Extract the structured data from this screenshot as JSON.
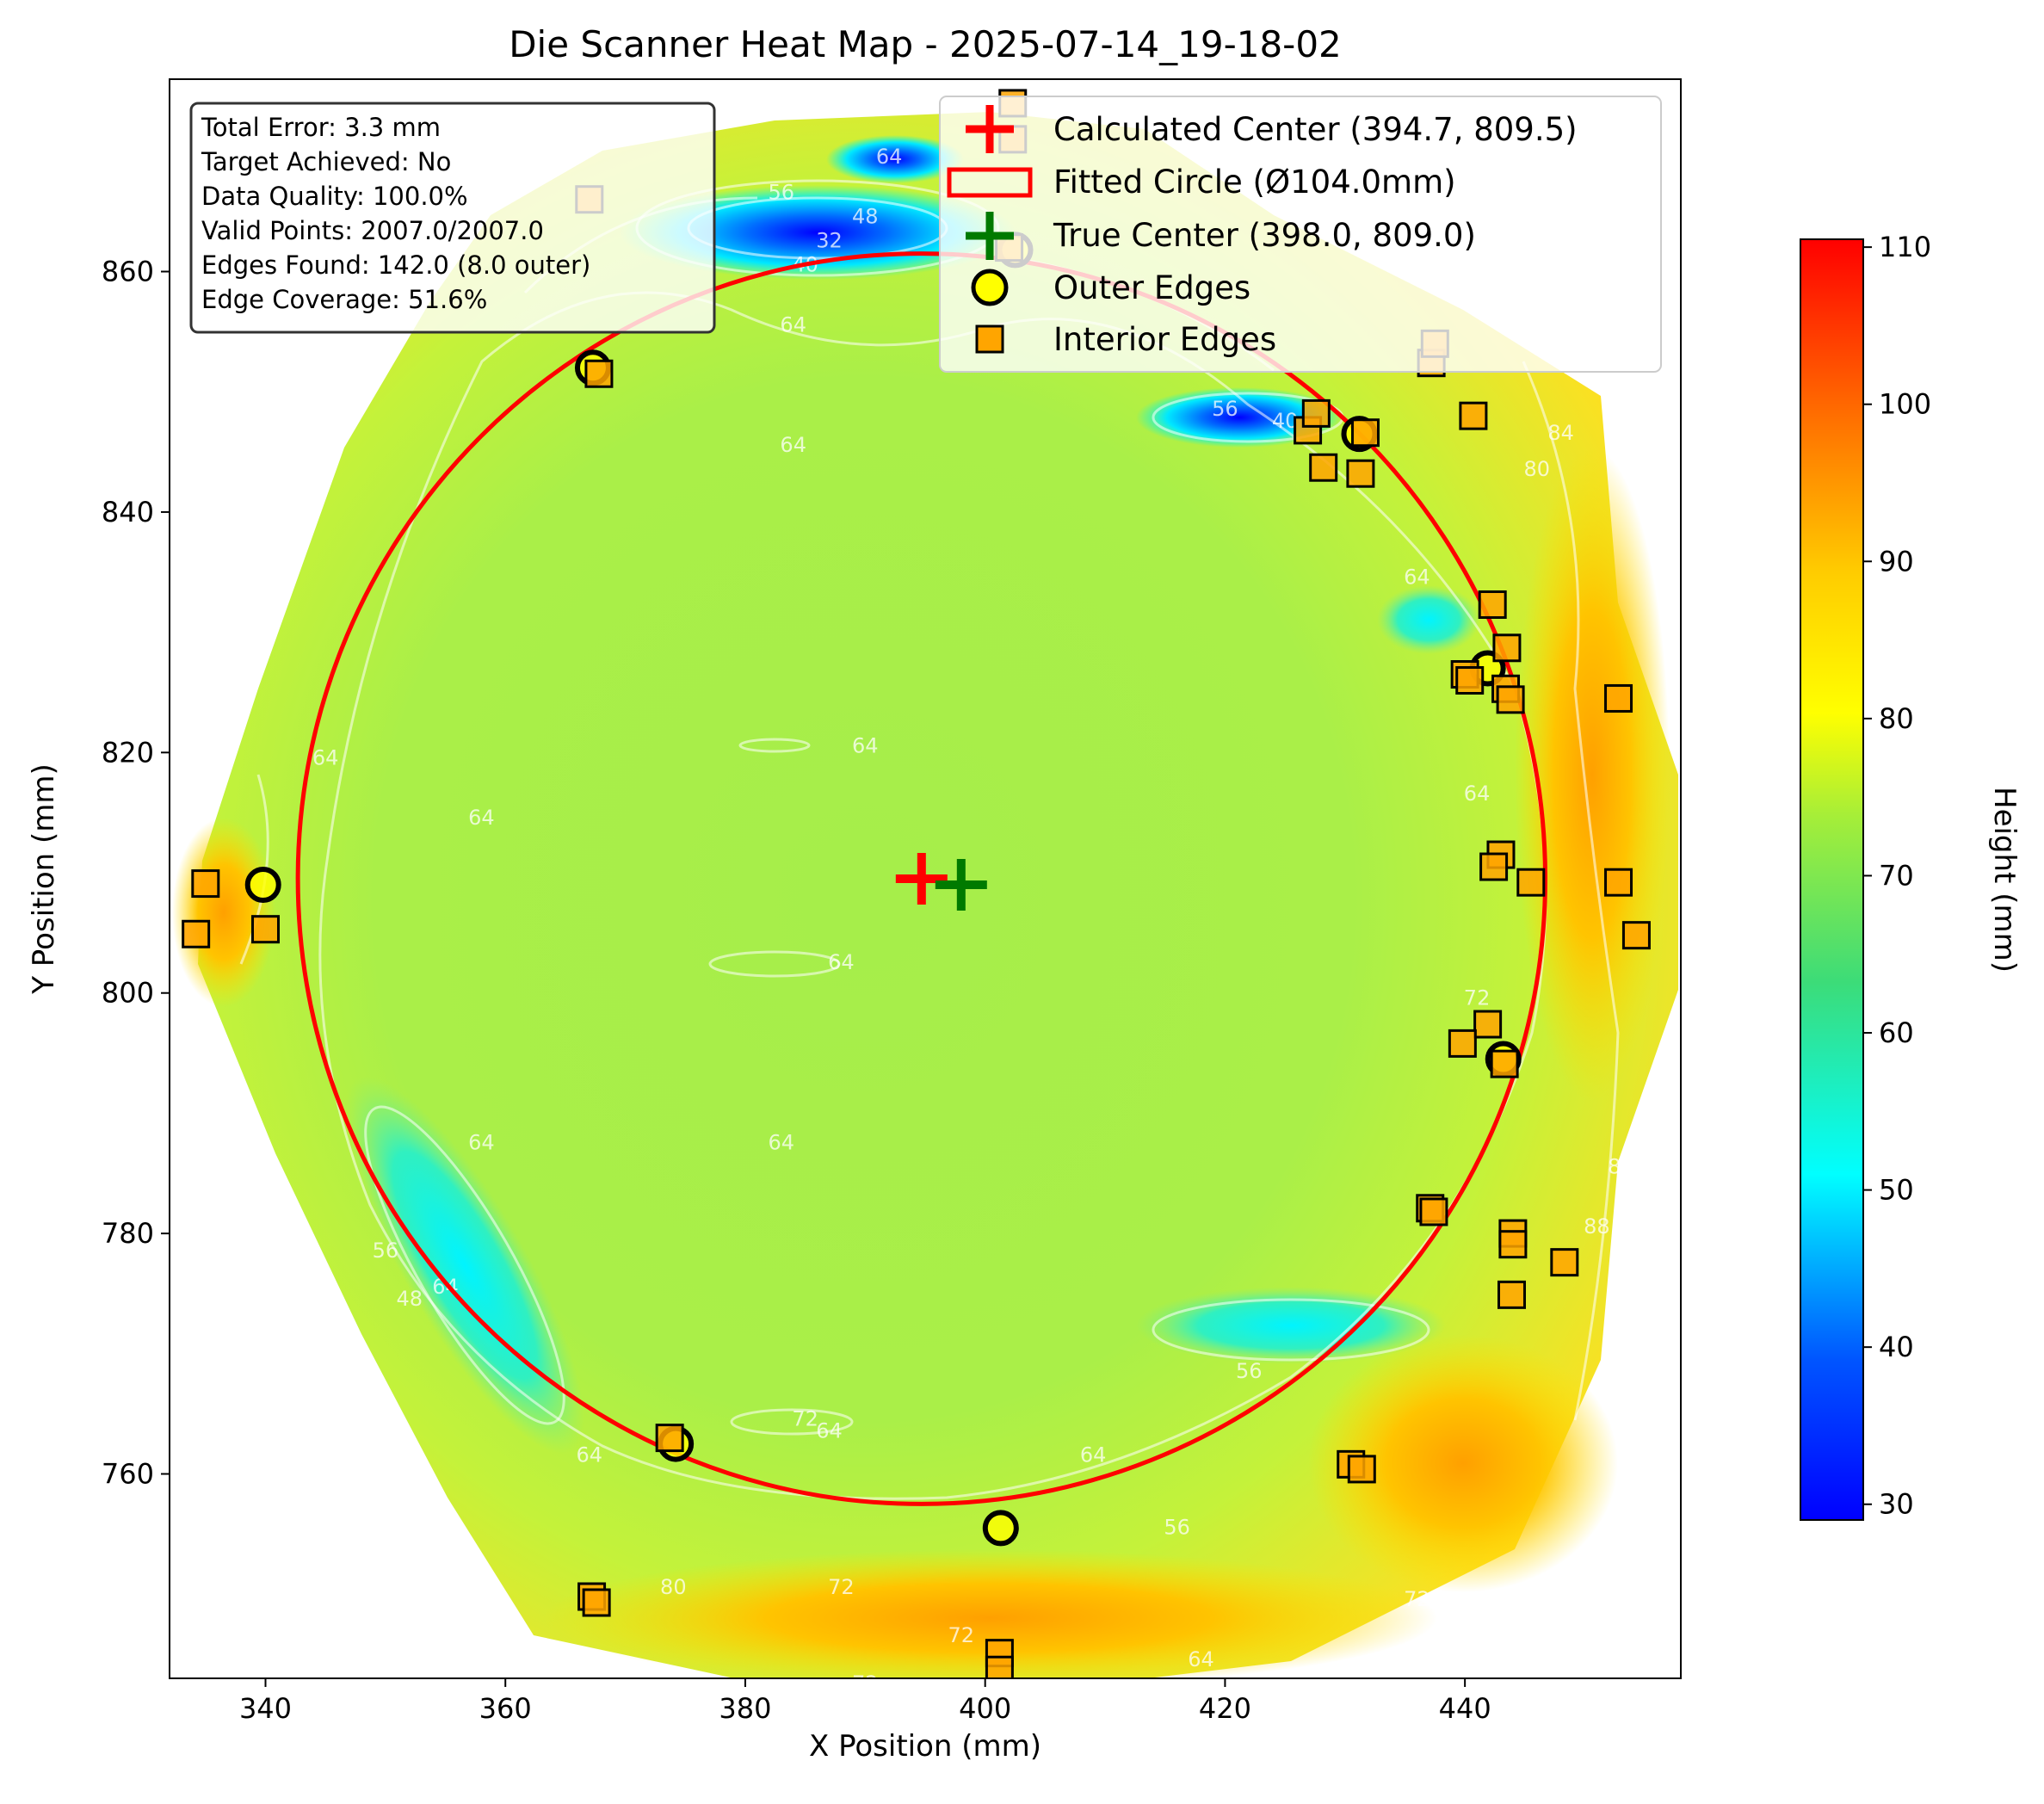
{
  "chart_data": {
    "type": "heatmap",
    "title": "Die Scanner Heat Map - 2025-07-14_19-18-02",
    "xlabel": "X Position (mm)",
    "ylabel": "Y Position (mm)",
    "xlim": [
      332,
      458
    ],
    "ylim": [
      743,
      876
    ],
    "xticks": [
      340,
      360,
      380,
      400,
      420,
      440
    ],
    "yticks": [
      760,
      780,
      800,
      820,
      840,
      860
    ],
    "grid": false,
    "colormap": "jet-like (blue-cyan-green-yellow-red)",
    "colorbar": {
      "label": "Height (mm)",
      "range": [
        29,
        110.5
      ],
      "ticks": [
        30,
        40,
        50,
        60,
        70,
        80,
        90,
        100,
        110
      ]
    },
    "info_box": {
      "lines": [
        "Total Error: 3.3 mm",
        "Target Achieved: No",
        "Data Quality: 100.0%",
        "Valid Points: 2007.0/2007.0",
        "Edges Found: 142.0 (8.0 outer)",
        "Edge Coverage: 51.6%"
      ]
    },
    "legend": {
      "placement": "top-right",
      "entries": [
        "Calculated Center (394.7, 809.5)",
        "Fitted Circle (Ø104.0mm)",
        "True Center (398.0, 809.0)",
        "Outer Edges",
        "Interior Edges"
      ]
    },
    "calculated_center": [
      394.7,
      809.5
    ],
    "true_center": [
      398.0,
      809.0
    ],
    "fitted_circle": {
      "center": [
        394.7,
        809.5
      ],
      "diameter": 104.0
    },
    "outer_edges": [
      [
        367.3,
        852
      ],
      [
        431.2,
        846.5
      ],
      [
        441.9,
        827
      ],
      [
        339.8,
        809
      ],
      [
        443.2,
        794.5
      ],
      [
        374.2,
        762.5
      ],
      [
        401.3,
        755.5
      ],
      [
        402.5,
        861.8
      ]
    ],
    "interior_edges": [
      [
        367.0,
        866
      ],
      [
        402.3,
        874
      ],
      [
        402.3,
        871
      ],
      [
        402.0,
        862
      ],
      [
        367.8,
        851.5
      ],
      [
        426.9,
        846.8
      ],
      [
        427.6,
        848.2
      ],
      [
        428.2,
        843.7
      ],
      [
        431.3,
        843.2
      ],
      [
        431.7,
        846.6
      ],
      [
        437.2,
        852.4
      ],
      [
        437.5,
        854
      ],
      [
        440.7,
        848
      ],
      [
        442.3,
        832.3
      ],
      [
        443.5,
        828.7
      ],
      [
        440.0,
        826.5
      ],
      [
        440.4,
        826.0
      ],
      [
        443.4,
        825.3
      ],
      [
        443.8,
        824.4
      ],
      [
        452.8,
        824.5
      ],
      [
        443.0,
        811.5
      ],
      [
        442.4,
        810.5
      ],
      [
        445.5,
        809.2
      ],
      [
        452.8,
        809.2
      ],
      [
        454.3,
        804.8
      ],
      [
        335.0,
        809.1
      ],
      [
        334.2,
        804.9
      ],
      [
        340.0,
        805.3
      ],
      [
        441.9,
        797.4
      ],
      [
        439.8,
        795.8
      ],
      [
        443.3,
        794.1
      ],
      [
        437.1,
        782.1
      ],
      [
        437.4,
        781.8
      ],
      [
        444.0,
        780.0
      ],
      [
        444.0,
        779.1
      ],
      [
        448.3,
        777.6
      ],
      [
        443.9,
        774.9
      ],
      [
        373.7,
        763.0
      ],
      [
        430.5,
        760.8
      ],
      [
        431.4,
        760.4
      ],
      [
        367.2,
        749.8
      ],
      [
        367.6,
        749.3
      ],
      [
        401.2,
        745.1
      ],
      [
        401.2,
        743.7
      ]
    ],
    "contour_labels": [
      {
        "text": "64",
        "at": [
          392,
          869
        ]
      },
      {
        "text": "48",
        "at": [
          390,
          864
        ]
      },
      {
        "text": "32",
        "at": [
          387,
          862
        ]
      },
      {
        "text": "40",
        "at": [
          385,
          860
        ]
      },
      {
        "text": "56",
        "at": [
          383,
          866
        ]
      },
      {
        "text": "64",
        "at": [
          384,
          855
        ]
      },
      {
        "text": "64",
        "at": [
          384,
          845
        ]
      },
      {
        "text": "56",
        "at": [
          420,
          848
        ]
      },
      {
        "text": "40",
        "at": [
          425,
          847
        ]
      },
      {
        "text": "64",
        "at": [
          436,
          834
        ]
      },
      {
        "text": "84",
        "at": [
          448,
          846
        ]
      },
      {
        "text": "80",
        "at": [
          446,
          843
        ]
      },
      {
        "text": "64",
        "at": [
          390,
          820
        ]
      },
      {
        "text": "64",
        "at": [
          345,
          819
        ]
      },
      {
        "text": "64",
        "at": [
          358,
          814
        ]
      },
      {
        "text": "64",
        "at": [
          388,
          802
        ]
      },
      {
        "text": "64",
        "at": [
          441,
          816
        ]
      },
      {
        "text": "72",
        "at": [
          441,
          799
        ]
      },
      {
        "text": "64",
        "at": [
          383,
          787
        ]
      },
      {
        "text": "64",
        "at": [
          358,
          787
        ]
      },
      {
        "text": "64",
        "at": [
          355,
          775
        ]
      },
      {
        "text": "56",
        "at": [
          350,
          778
        ]
      },
      {
        "text": "48",
        "at": [
          352,
          774
        ]
      },
      {
        "text": "88",
        "at": [
          453,
          785
        ]
      },
      {
        "text": "88",
        "at": [
          451,
          780
        ]
      },
      {
        "text": "56",
        "at": [
          422,
          768
        ]
      },
      {
        "text": "72",
        "at": [
          385,
          764
        ]
      },
      {
        "text": "64",
        "at": [
          387,
          763
        ]
      },
      {
        "text": "64",
        "at": [
          367,
          761
        ]
      },
      {
        "text": "64",
        "at": [
          409,
          761
        ]
      },
      {
        "text": "80",
        "at": [
          374,
          750
        ]
      },
      {
        "text": "72",
        "at": [
          388,
          750
        ]
      },
      {
        "text": "72",
        "at": [
          390,
          742
        ]
      },
      {
        "text": "72",
        "at": [
          398,
          746
        ]
      },
      {
        "text": "64",
        "at": [
          418,
          744
        ]
      },
      {
        "text": "56",
        "at": [
          416,
          755
        ]
      },
      {
        "text": "72",
        "at": [
          436,
          749
        ]
      }
    ]
  }
}
